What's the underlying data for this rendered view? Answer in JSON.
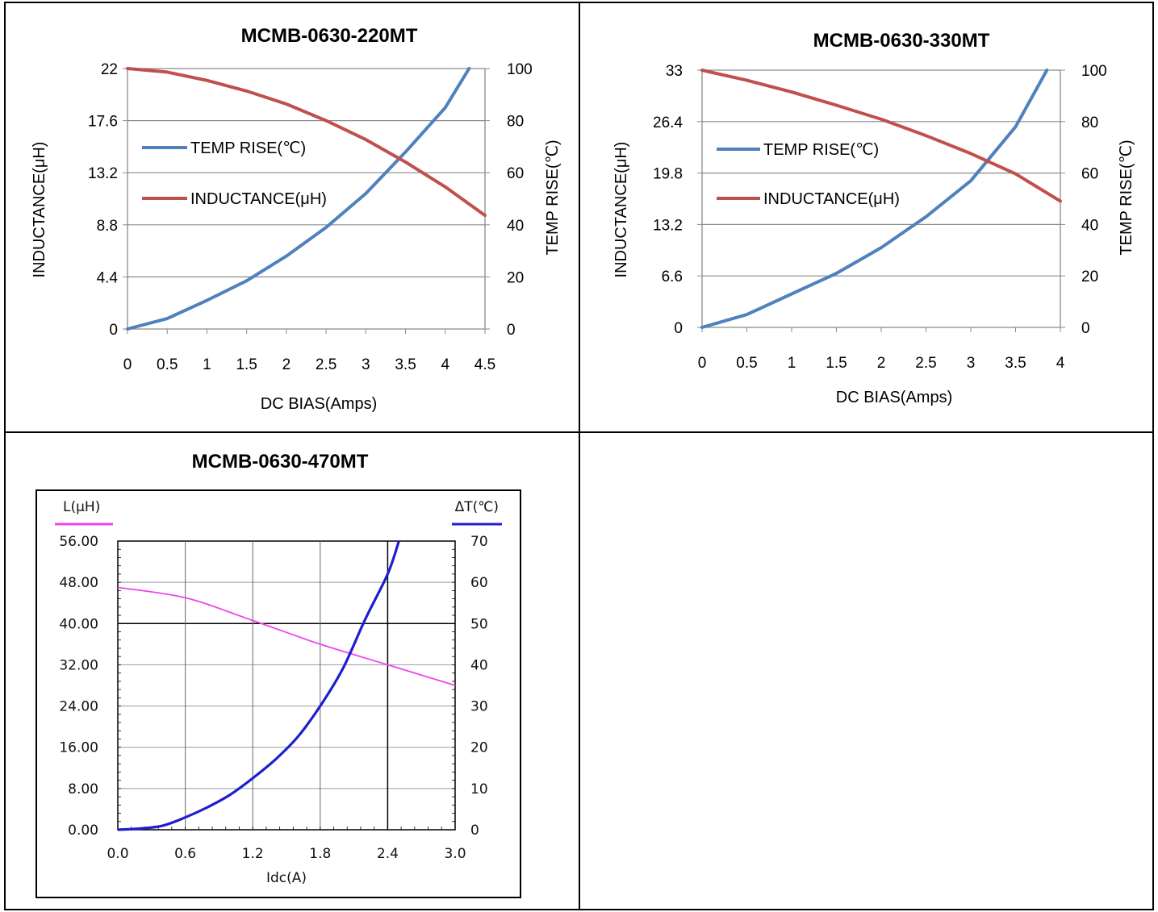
{
  "chart_data": [
    {
      "type": "line",
      "title": "MCMB-0630-220MT",
      "xlabel": "DC  BIAS(Amps)",
      "ylabel": "INDUCTANCE(μH)",
      "y2label": "TEMP RISE(℃)",
      "xlim": [
        0,
        4.5
      ],
      "ylim": [
        0,
        22
      ],
      "y2lim": [
        0,
        100
      ],
      "x_ticks": [
        "0",
        "0.5",
        "1",
        "1.5",
        "2",
        "2.5",
        "3",
        "3.5",
        "4",
        "4.5"
      ],
      "y_ticks": [
        "0",
        "4.4",
        "8.8",
        "13.2",
        "17.6",
        "22"
      ],
      "y2_ticks": [
        "0",
        "20",
        "40",
        "60",
        "80",
        "100"
      ],
      "grid": true,
      "legend_position": "left",
      "series": [
        {
          "name": "TEMP RISE(℃)",
          "axis": "right",
          "color": "#4f81bd",
          "x": [
            0,
            0.5,
            1,
            1.5,
            2,
            2.5,
            3,
            3.5,
            4,
            4.3
          ],
          "y": [
            0,
            4,
            11,
            18.5,
            28,
            39,
            52,
            68,
            85,
            100
          ]
        },
        {
          "name": "INDUCTANCE(μH)",
          "axis": "left",
          "color": "#c0504d",
          "x": [
            0,
            0.5,
            1,
            1.5,
            2,
            2.5,
            3,
            3.5,
            4,
            4.5
          ],
          "y": [
            22,
            21.7,
            21,
            20.1,
            19,
            17.6,
            16,
            14.1,
            12,
            9.6
          ]
        }
      ]
    },
    {
      "type": "line",
      "title": "MCMB-0630-330MT",
      "xlabel": "DC  BIAS(Amps)",
      "ylabel": "INDUCTANCE(μH)",
      "y2label": "TEMP RISE(℃)",
      "xlim": [
        0,
        4
      ],
      "ylim": [
        0,
        33
      ],
      "y2lim": [
        0,
        100
      ],
      "x_ticks": [
        "0",
        "0.5",
        "1",
        "1.5",
        "2",
        "2.5",
        "3",
        "3.5",
        "4"
      ],
      "y_ticks": [
        "0",
        "6.6",
        "13.2",
        "19.8",
        "26.4",
        "33"
      ],
      "y2_ticks": [
        "0",
        "20",
        "40",
        "60",
        "80",
        "100"
      ],
      "grid": true,
      "legend_position": "left",
      "series": [
        {
          "name": "TEMP RISE(℃)",
          "axis": "right",
          "color": "#4f81bd",
          "x": [
            0,
            0.5,
            1,
            1.5,
            2,
            2.5,
            3,
            3.5,
            3.85
          ],
          "y": [
            0,
            5,
            13,
            21,
            31,
            43,
            57,
            78,
            100
          ]
        },
        {
          "name": "INDUCTANCE(μH)",
          "axis": "left",
          "color": "#c0504d",
          "x": [
            0,
            0.5,
            1,
            1.5,
            2,
            2.5,
            3,
            3.5,
            4
          ],
          "y": [
            33,
            31.7,
            30.2,
            28.5,
            26.7,
            24.6,
            22.3,
            19.7,
            16.2
          ]
        }
      ]
    },
    {
      "type": "line",
      "title": "MCMB-0630-470MT",
      "xlabel": "Idc(A)",
      "ylabel": "L(μH)",
      "y2label": "ΔT(℃)",
      "xlim": [
        0,
        3
      ],
      "ylim": [
        0,
        56
      ],
      "y2lim": [
        0,
        70
      ],
      "x_ticks": [
        "0.0",
        "0.6",
        "1.2",
        "1.8",
        "2.4",
        "3.0"
      ],
      "y_ticks": [
        "0.00",
        "8.00",
        "16.00",
        "24.00",
        "32.00",
        "40.00",
        "48.00",
        "56.00"
      ],
      "y2_ticks": [
        "0",
        "10",
        "20",
        "30",
        "40",
        "50",
        "60",
        "70"
      ],
      "grid": true,
      "series": [
        {
          "name": "L(μH)",
          "axis": "left",
          "color": "#ee44ee",
          "x": [
            0,
            0.6,
            1.2,
            1.8,
            2.4,
            3.0
          ],
          "y": [
            47,
            45,
            40.6,
            36,
            32,
            28
          ]
        },
        {
          "name": "ΔT(℃)",
          "axis": "right",
          "color": "#1e1ed0",
          "x": [
            0,
            0.2,
            0.4,
            0.6,
            0.8,
            1.0,
            1.2,
            1.4,
            1.6,
            1.8,
            2.0,
            2.2,
            2.4,
            2.5
          ],
          "y": [
            0,
            0.3,
            1,
            3,
            5.5,
            8.5,
            12.5,
            17,
            22.5,
            30,
            39,
            51,
            62,
            70
          ]
        }
      ]
    }
  ]
}
